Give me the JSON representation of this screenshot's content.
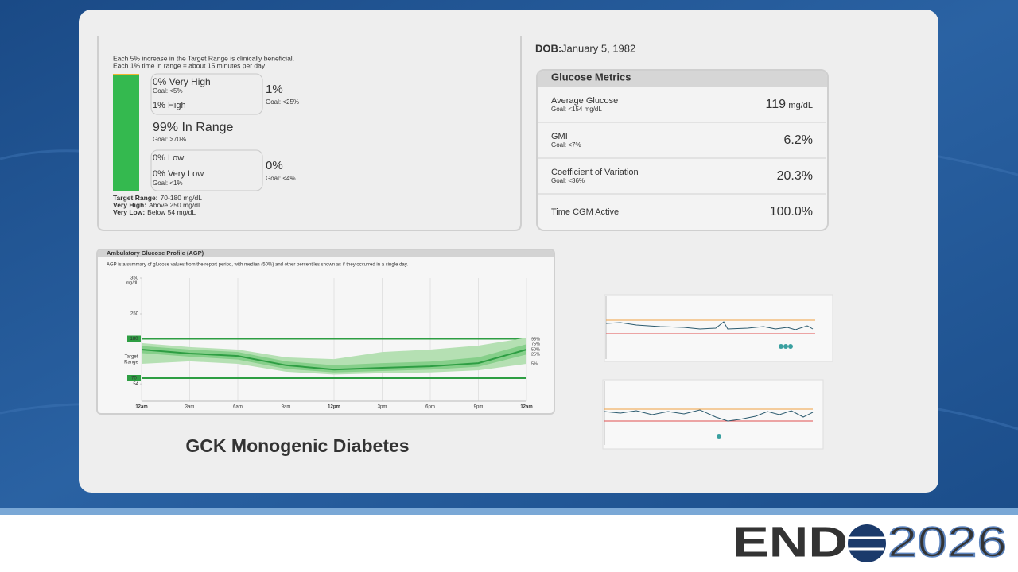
{
  "patient": {
    "dob_label": "DOB:",
    "dob": "January 5, 1982"
  },
  "tir": {
    "notes": [
      "Each 5% increase in the Target Range is clinically beneficial.",
      "Each 1% time in range = about 15 minutes per day"
    ],
    "bar": {
      "values": [
        0,
        1,
        99,
        0,
        0
      ],
      "colors": [
        "#d9352b",
        "#f2b632",
        "#34b94f",
        "#e4572e",
        "#a61d1d"
      ]
    },
    "ranges": [
      {
        "label": "0% Very High",
        "goal": "Goal: <5%"
      },
      {
        "label": "1% High"
      },
      {
        "label": "99% In Range",
        "goal": "Goal: >70%"
      },
      {
        "label": "0% Low"
      },
      {
        "label": "0% Very Low",
        "goal": "Goal: <1%"
      }
    ],
    "combined": [
      {
        "value": "1%",
        "goal": "Goal: <25%"
      },
      {
        "value": "0%",
        "goal": "Goal: <4%"
      }
    ],
    "definitions": [
      {
        "term": "Target Range:",
        "text": "70-180 mg/dL"
      },
      {
        "term": "Very High:",
        "text": "Above 250 mg/dL"
      },
      {
        "term": "Very Low:",
        "text": "Below 54 mg/dL"
      }
    ]
  },
  "metrics": {
    "title": "Glucose Metrics",
    "rows": [
      {
        "label": "Average Glucose",
        "goal": "Goal: <154 mg/dL",
        "value": "119",
        "unit": "mg/dL"
      },
      {
        "label": "GMI",
        "goal": "Goal: <7%",
        "value": "6.2%"
      },
      {
        "label": "Coefficient of Variation",
        "goal": "Goal: <36%",
        "value": "20.3%"
      },
      {
        "label": "Time CGM Active",
        "value": "100.0%"
      }
    ]
  },
  "agp": {
    "title": "Ambulatory Glucose Profile (AGP)",
    "description": "AGP is a summary of glucose values from the report period, with median (50%) and other percentiles shown as if they occurred in a single day.",
    "y_unit": "mg/dL",
    "target_label": "Target Range",
    "ylim": [
      0,
      350
    ],
    "yticks": [
      350,
      250,
      180,
      70,
      54
    ],
    "target_range": [
      70,
      180
    ],
    "categories": [
      "12am",
      "3am",
      "6am",
      "9am",
      "12pm",
      "3pm",
      "6pm",
      "9pm",
      "12am"
    ],
    "series": [
      {
        "name": "95%",
        "values": [
          168,
          157,
          150,
          128,
          123,
          143,
          150,
          161,
          183
        ]
      },
      {
        "name": "75%",
        "values": [
          160,
          150,
          143,
          117,
          106,
          112,
          116,
          128,
          165
        ]
      },
      {
        "name": "50%",
        "values": [
          150,
          139,
          132,
          106,
          94,
          99,
          103,
          112,
          150
        ]
      },
      {
        "name": "25%",
        "values": [
          140,
          130,
          122,
          96,
          86,
          90,
          94,
          102,
          136
        ]
      },
      {
        "name": "5%",
        "values": [
          110,
          117,
          110,
          88,
          80,
          84,
          86,
          92,
          110
        ]
      }
    ],
    "colors": {
      "outer": "#b5e0b3",
      "inner": "#86cf8a",
      "median": "#2e9e43",
      "target": "#2e9e43"
    }
  },
  "caption": "GCK Monogenic Diabetes",
  "logo": {
    "word": "END",
    "year": "2026"
  }
}
